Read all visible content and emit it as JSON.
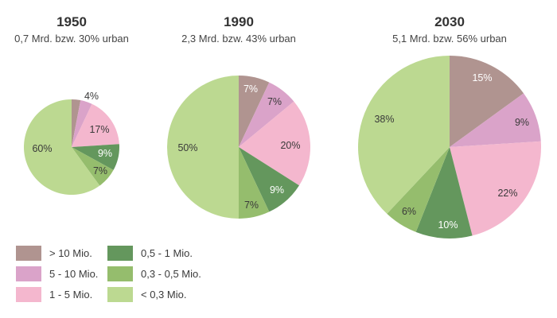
{
  "chart_data": [
    {
      "type": "pie",
      "title": "1950",
      "subtitle": "0,7 Mrd. bzw. 30% urban",
      "slices": [
        {
          "category": "> 10 Mio.",
          "value": 3,
          "label": "3%"
        },
        {
          "category": "5 - 10 Mio.",
          "value": 4,
          "label": "4%"
        },
        {
          "category": "1 - 5 Mio.",
          "value": 17,
          "label": "17%"
        },
        {
          "category": "0,5 - 1 Mio.",
          "value": 9,
          "label": "9%"
        },
        {
          "category": "0,3 - 0,5 Mio.",
          "value": 7,
          "label": "7%"
        },
        {
          "category": "< 0,3 Mio.",
          "value": 60,
          "label": "60%"
        }
      ]
    },
    {
      "type": "pie",
      "title": "1990",
      "subtitle": "2,3 Mrd. bzw. 43% urban",
      "slices": [
        {
          "category": "> 10 Mio.",
          "value": 7,
          "label": "7%"
        },
        {
          "category": "5 - 10 Mio.",
          "value": 7,
          "label": "7%"
        },
        {
          "category": "1 - 5 Mio.",
          "value": 20,
          "label": "20%"
        },
        {
          "category": "0,5 - 1 Mio.",
          "value": 9,
          "label": "9%"
        },
        {
          "category": "0,3 - 0,5 Mio.",
          "value": 7,
          "label": "7%"
        },
        {
          "category": "< 0,3 Mio.",
          "value": 50,
          "label": "50%"
        }
      ]
    },
    {
      "type": "pie",
      "title": "2030",
      "subtitle": "5,1 Mrd. bzw. 56% urban",
      "slices": [
        {
          "category": "> 10 Mio.",
          "value": 15,
          "label": "15%"
        },
        {
          "category": "5 - 10 Mio.",
          "value": 9,
          "label": "9%"
        },
        {
          "category": "1 - 5 Mio.",
          "value": 22,
          "label": "22%"
        },
        {
          "category": "0,5 - 1 Mio.",
          "value": 10,
          "label": "10%"
        },
        {
          "category": "0,3 - 0,5 Mio.",
          "value": 6,
          "label": "6%"
        },
        {
          "category": "< 0,3 Mio.",
          "value": 38,
          "label": "38%"
        }
      ]
    }
  ],
  "legend": {
    "placement": "bottom-left",
    "items": [
      {
        "label": "> 10 Mio.",
        "color": "#b09490"
      },
      {
        "label": "0,5 - 1 Mio.",
        "color": "#64975d"
      },
      {
        "label": "5 - 10 Mio.",
        "color": "#daa3c9"
      },
      {
        "label": "0,3 - 0,5 Mio.",
        "color": "#95bd6d"
      },
      {
        "label": "1 - 5 Mio.",
        "color": "#f4b7ce"
      },
      {
        "label": "< 0,3 Mio.",
        "color": "#bcd991"
      }
    ]
  },
  "colors": {
    "> 10 Mio.": "#b09490",
    "5 - 10 Mio.": "#daa3c9",
    "1 - 5 Mio.": "#f4b7ce",
    "0,5 - 1 Mio.": "#64975d",
    "0,3 - 0,5 Mio.": "#95bd6d",
    "< 0,3 Mio.": "#bcd991"
  }
}
